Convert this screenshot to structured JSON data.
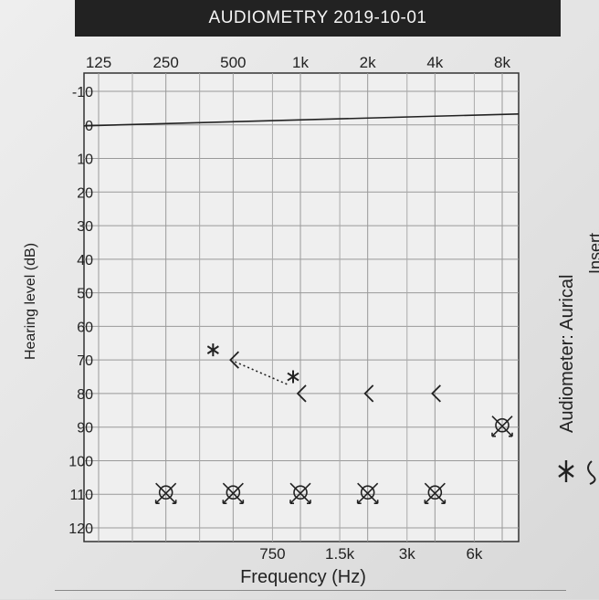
{
  "header": {
    "title": "AUDIOMETRY  2019-10-01"
  },
  "side_notes": {
    "audiometer": "Audiometer: Aurical",
    "transducer_partial": "Insert"
  },
  "chart_data": {
    "type": "scatter",
    "title": "AUDIOMETRY  2019-10-01",
    "xlabel": "Frequency (Hz)",
    "ylabel": "Hearing level (dB)",
    "x_scale": "log",
    "xlim": [
      125,
      8000
    ],
    "ylim": [
      -10,
      120
    ],
    "y_inverted": true,
    "grid": true,
    "x_ticks_top": [
      {
        "value": 125,
        "label": "125"
      },
      {
        "value": 250,
        "label": "250"
      },
      {
        "value": 500,
        "label": "500"
      },
      {
        "value": 1000,
        "label": "1k"
      },
      {
        "value": 2000,
        "label": "2k"
      },
      {
        "value": 4000,
        "label": "4k"
      },
      {
        "value": 8000,
        "label": "8k"
      }
    ],
    "x_ticks_bottom": [
      {
        "value": 750,
        "label": "750"
      },
      {
        "value": 1500,
        "label": "1.5k"
      },
      {
        "value": 3000,
        "label": "3k"
      },
      {
        "value": 6000,
        "label": "6k"
      }
    ],
    "y_ticks": [
      -10,
      0,
      10,
      20,
      30,
      40,
      50,
      60,
      70,
      80,
      90,
      100,
      110,
      120
    ],
    "series": [
      {
        "symbol": "bone-conduction-bracket",
        "points": [
          {
            "x": 500,
            "y": 70
          },
          {
            "x": 1000,
            "y": 80
          },
          {
            "x": 2000,
            "y": 80
          },
          {
            "x": 4000,
            "y": 80
          }
        ]
      },
      {
        "symbol": "no-response-x",
        "points": [
          {
            "x": 250,
            "y": 110
          },
          {
            "x": 500,
            "y": 110
          },
          {
            "x": 1000,
            "y": 110
          },
          {
            "x": 2000,
            "y": 110
          },
          {
            "x": 4000,
            "y": 110
          },
          {
            "x": 8000,
            "y": 90
          }
        ]
      },
      {
        "symbol": "star",
        "points": [
          {
            "x": 500,
            "y": 67
          },
          {
            "x": 1000,
            "y": 75
          }
        ]
      }
    ],
    "dotted_connection": [
      {
        "x": 500,
        "y": 70
      },
      {
        "x": 1000,
        "y": 77
      }
    ],
    "reference_line_y": 0
  }
}
